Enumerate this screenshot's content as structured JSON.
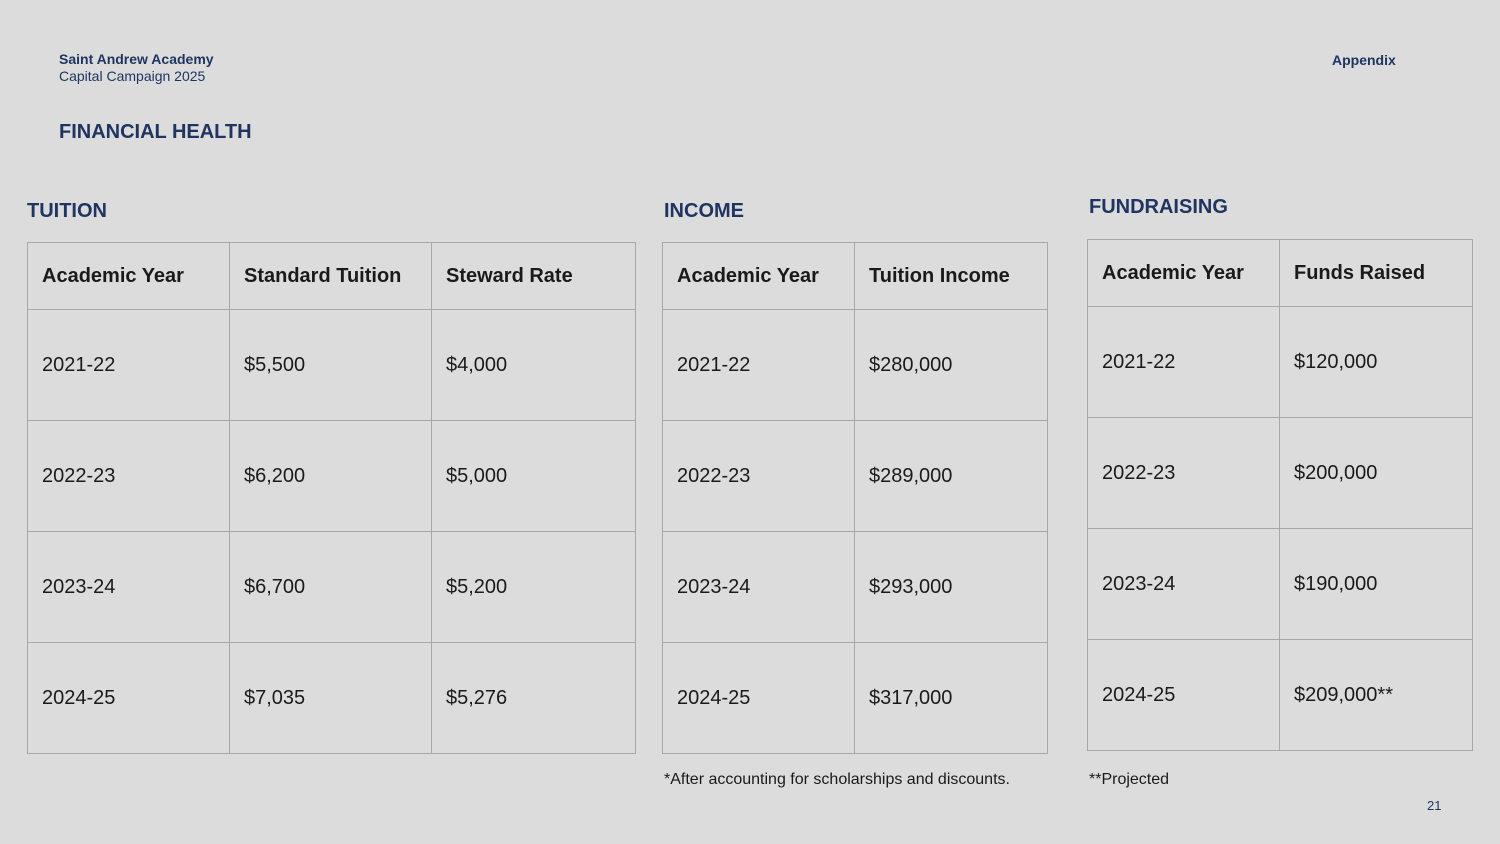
{
  "header": {
    "org_name": "Saint Andrew Academy",
    "org_sub": "Capital Campaign 2025",
    "section_tag": "Appendix"
  },
  "page_title": "FINANCIAL HEALTH",
  "tuition": {
    "title": "TUITION",
    "headers": [
      "Academic Year",
      "Standard Tuition",
      "Steward Rate"
    ],
    "rows": [
      [
        "2021-22",
        "$5,500",
        "$4,000"
      ],
      [
        "2022-23",
        "$6,200",
        "$5,000"
      ],
      [
        "2023-24",
        "$6,700",
        "$5,200"
      ],
      [
        "2024-25",
        "$7,035",
        "$5,276"
      ]
    ]
  },
  "income": {
    "title": "INCOME",
    "headers": [
      "Academic Year",
      "Tuition Income"
    ],
    "rows": [
      [
        "2021-22",
        "$280,000"
      ],
      [
        "2022-23",
        "$289,000"
      ],
      [
        "2023-24",
        "$293,000"
      ],
      [
        "2024-25",
        "$317,000"
      ]
    ],
    "note": "*After accounting for scholarships and discounts."
  },
  "fundraising": {
    "title": "FUNDRAISING",
    "headers": [
      "Academic Year",
      "Funds Raised"
    ],
    "rows": [
      [
        "2021-22",
        "$120,000"
      ],
      [
        "2022-23",
        "$200,000"
      ],
      [
        "2023-24",
        "$190,000"
      ],
      [
        "2024-25",
        "$209,000**"
      ]
    ],
    "note": "**Projected"
  },
  "page_number": "21",
  "colors": {
    "background": "#dcdcdc",
    "accent": "#1f3461",
    "grid": "#a8a8a8"
  }
}
